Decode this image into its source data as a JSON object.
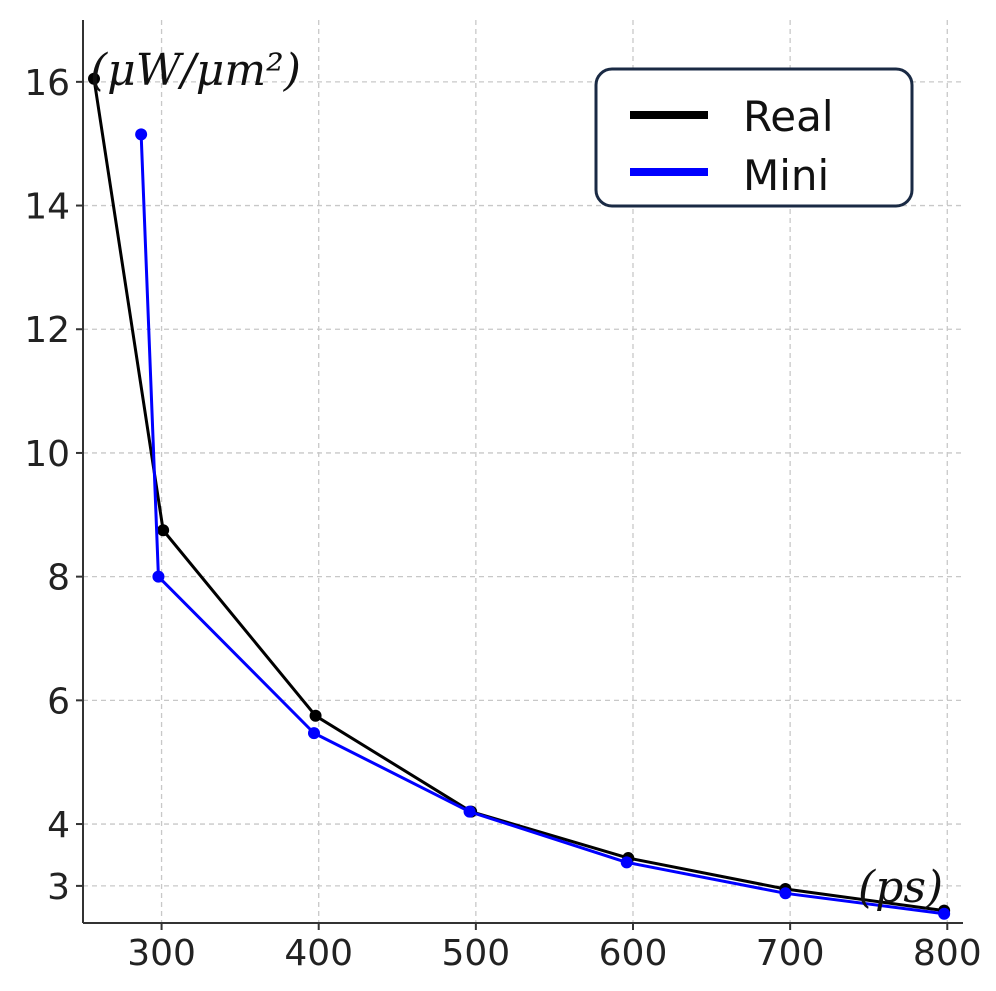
{
  "chart_data": {
    "type": "line",
    "title": "",
    "xlabel": "(ps)",
    "ylabel": "(μW/μm²)",
    "xlim": [
      250,
      810
    ],
    "ylim": [
      2.4,
      17
    ],
    "xticks": [
      300,
      400,
      500,
      600,
      700,
      800
    ],
    "yticks": [
      3,
      4,
      6,
      8,
      10,
      12,
      14,
      16
    ],
    "grid": true,
    "legend": "top-right",
    "series": [
      {
        "name": "Real",
        "color": "#000000",
        "points": [
          [
            257,
            16.05
          ],
          [
            301,
            8.75
          ],
          [
            398,
            5.75
          ],
          [
            497,
            4.2
          ],
          [
            597,
            3.45
          ],
          [
            697,
            2.95
          ],
          [
            798,
            2.6
          ]
        ]
      },
      {
        "name": "Mini",
        "color": "#0000ff",
        "points": [
          [
            287,
            15.15
          ],
          [
            298,
            8.0
          ],
          [
            397,
            5.47
          ],
          [
            496,
            4.2
          ],
          [
            596,
            3.38
          ],
          [
            697,
            2.88
          ],
          [
            798,
            2.55
          ]
        ]
      }
    ]
  }
}
